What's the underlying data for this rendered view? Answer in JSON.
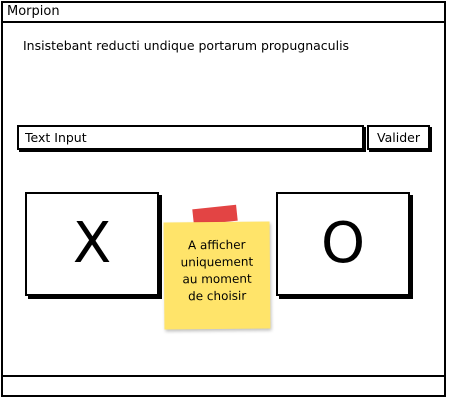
{
  "window": {
    "title": "Morpion"
  },
  "content": {
    "text": "Insistebant reducti undique portarum propugnaculis"
  },
  "form": {
    "input_value": "Text Input",
    "submit_label": "Valider"
  },
  "choices": {
    "x_label": "X",
    "o_label": "O"
  },
  "note": {
    "lines": [
      "A afficher",
      "uniquement",
      "au moment",
      "de choisir"
    ],
    "colors": {
      "paper": "#ffe46a",
      "tape": "#e03030"
    }
  }
}
